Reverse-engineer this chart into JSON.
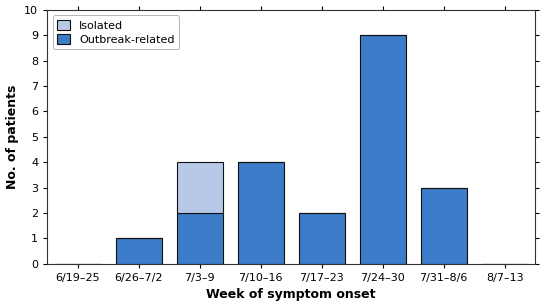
{
  "categories": [
    "6/19–25",
    "6/26–7/2",
    "7/3–9",
    "7/10–16",
    "7/17–23",
    "7/24–30",
    "7/31–8/6",
    "8/7–13"
  ],
  "outbreak_related": [
    0,
    1,
    2,
    4,
    2,
    9,
    3,
    0
  ],
  "isolated": [
    0,
    0,
    2,
    0,
    0,
    0,
    0,
    0
  ],
  "outbreak_color": "#3d7cc9",
  "isolated_color": "#b8c9e8",
  "bar_edgecolor": "#111111",
  "title": "",
  "xlabel": "Week of symptom onset",
  "ylabel": "No. of patients",
  "ylim": [
    0,
    10
  ],
  "yticks": [
    0,
    1,
    2,
    3,
    4,
    5,
    6,
    7,
    8,
    9,
    10
  ],
  "legend_labels": [
    "Isolated",
    "Outbreak-related"
  ],
  "background_color": "#ffffff",
  "xlabel_fontsize": 9,
  "ylabel_fontsize": 9,
  "tick_fontsize": 8,
  "legend_fontsize": 8,
  "bar_width": 0.75
}
